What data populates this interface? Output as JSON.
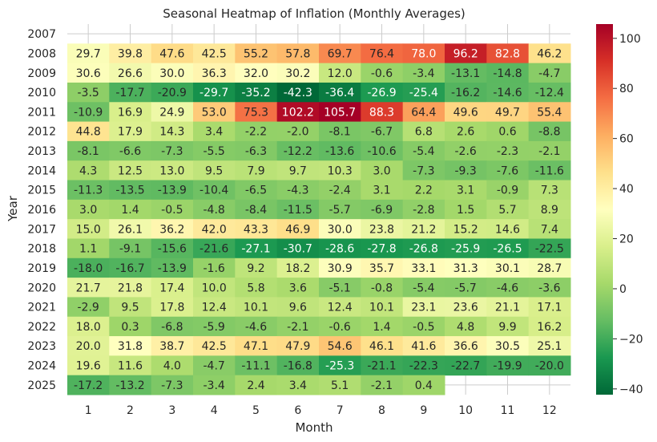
{
  "chart_data": {
    "type": "heatmap",
    "title": "Seasonal Heatmap of Inflation (Monthly Averages)",
    "xlabel": "Month",
    "ylabel": "Year",
    "x": [
      "1",
      "2",
      "3",
      "4",
      "5",
      "6",
      "7",
      "8",
      "9",
      "10",
      "11",
      "12"
    ],
    "y": [
      "2007",
      "2008",
      "2009",
      "2010",
      "2011",
      "2012",
      "2013",
      "2014",
      "2015",
      "2016",
      "2017",
      "2018",
      "2019",
      "2020",
      "2021",
      "2022",
      "2023",
      "2024",
      "2025"
    ],
    "values": [
      [
        null,
        null,
        null,
        null,
        null,
        null,
        null,
        null,
        null,
        null,
        null,
        null
      ],
      [
        29.7,
        39.8,
        47.6,
        42.5,
        55.2,
        57.8,
        69.7,
        76.4,
        78.0,
        96.2,
        82.8,
        46.2
      ],
      [
        30.6,
        26.6,
        30.0,
        36.3,
        32.0,
        30.2,
        12.0,
        -0.6,
        -3.4,
        -13.1,
        -14.8,
        -4.7
      ],
      [
        -3.5,
        -17.7,
        -20.9,
        -29.7,
        -35.2,
        -42.3,
        -36.4,
        -26.9,
        -25.4,
        -16.2,
        -14.6,
        -12.4
      ],
      [
        -10.9,
        16.9,
        24.9,
        53.0,
        75.3,
        102.2,
        105.7,
        88.3,
        64.4,
        49.6,
        49.7,
        55.4
      ],
      [
        44.8,
        17.9,
        14.3,
        3.4,
        -2.2,
        -2.0,
        -8.1,
        -6.7,
        6.8,
        2.6,
        0.6,
        -8.8
      ],
      [
        -8.1,
        -6.6,
        -7.3,
        -5.5,
        -6.3,
        -12.2,
        -13.6,
        -10.6,
        -5.4,
        -2.6,
        -2.3,
        -2.1
      ],
      [
        4.3,
        12.5,
        13.0,
        9.5,
        7.9,
        9.7,
        10.3,
        3.0,
        -7.3,
        -9.3,
        -7.6,
        -11.6
      ],
      [
        -11.3,
        -13.5,
        -13.9,
        -10.4,
        -6.5,
        -4.3,
        -2.4,
        3.1,
        2.2,
        3.1,
        -0.9,
        7.3
      ],
      [
        3.0,
        1.4,
        -0.5,
        -4.8,
        -8.4,
        -11.5,
        -5.7,
        -6.9,
        -2.8,
        1.5,
        5.7,
        8.9
      ],
      [
        15.0,
        26.1,
        36.2,
        42.0,
        43.3,
        46.9,
        30.0,
        23.8,
        21.2,
        15.2,
        14.6,
        7.4
      ],
      [
        1.1,
        -9.1,
        -15.6,
        -21.6,
        -27.1,
        -30.7,
        -28.6,
        -27.8,
        -26.8,
        -25.9,
        -26.5,
        -22.5
      ],
      [
        -18.0,
        -16.7,
        -13.9,
        -1.6,
        9.2,
        18.2,
        30.9,
        35.7,
        33.1,
        31.3,
        30.1,
        28.7
      ],
      [
        21.7,
        21.8,
        17.4,
        10.0,
        5.8,
        3.6,
        -5.1,
        -0.8,
        -5.4,
        -5.7,
        -4.6,
        -3.6
      ],
      [
        -2.9,
        9.5,
        17.8,
        12.4,
        10.1,
        9.6,
        12.4,
        10.1,
        23.1,
        23.6,
        21.1,
        17.1
      ],
      [
        18.0,
        0.3,
        -6.8,
        -5.9,
        -4.6,
        -2.1,
        -0.6,
        1.4,
        -0.5,
        4.8,
        9.9,
        16.2
      ],
      [
        20.0,
        31.8,
        38.7,
        42.5,
        47.1,
        47.9,
        54.6,
        46.1,
        41.6,
        36.6,
        30.5,
        25.1
      ],
      [
        19.6,
        11.6,
        4.0,
        -4.7,
        -11.1,
        -16.8,
        -25.3,
        -21.1,
        -22.3,
        -22.7,
        -19.9,
        -20.0
      ],
      [
        -17.2,
        -13.2,
        -7.3,
        -3.4,
        2.4,
        3.4,
        5.1,
        -2.1,
        0.4,
        null,
        null,
        null
      ]
    ],
    "value_range": [
      -42.3,
      105.7
    ],
    "colormap": "RdYlGn_r",
    "colorbar_ticks": [
      -40,
      -20,
      0,
      20,
      40,
      60,
      80,
      100
    ],
    "annotated": true,
    "grid": true
  }
}
